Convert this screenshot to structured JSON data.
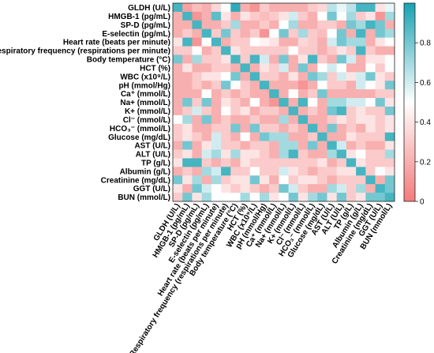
{
  "chart_data": {
    "type": "heatmap",
    "variables": [
      "GLDH (U/L)",
      "HMGB-1 (pg/mL)",
      "SP-D (pg/mL)",
      "E-selectin (pg/mL)",
      "Heart rate (beats per minute)",
      "Respiratory frequency (respirations per minute)",
      "Body temperature (°C)",
      "HCT (%)",
      "WBC (x10⁹/L)",
      "pH (mmol/Hg)",
      "Ca⁺ (mmol/L)",
      "Na+ (mmol/L)",
      "K+ (mmol/L)",
      "Cl⁻ (mmol/L)",
      "HCO₃⁻ (mmol/L)",
      "Glucose (mg/dL)",
      "AST (U/L)",
      "ALT (U/L)",
      "TP (g/L)",
      "Albumin (g/L)",
      "Creatinine (mg/dL)",
      "GGT (U/L)",
      "BUN (mmol/L)"
    ],
    "values": [
      [
        0.9,
        0.15,
        0.25,
        0.2,
        0.35,
        0.5,
        0.95,
        0.2,
        0.1,
        0.3,
        0.2,
        0.2,
        0.2,
        0.2,
        0.3,
        0.35,
        0.65,
        0.55,
        0.65,
        0.9,
        0.9,
        0.4,
        0.55
      ],
      [
        0.2,
        0.9,
        0.1,
        0.2,
        0.85,
        0.4,
        0.2,
        0.4,
        0.3,
        0.25,
        0.3,
        0.4,
        0.6,
        0.3,
        0.2,
        0.5,
        0.8,
        0.5,
        0.7,
        0.3,
        0.4,
        0.1,
        0.7
      ],
      [
        0.2,
        0.2,
        0.9,
        0.2,
        0.2,
        0.3,
        0.7,
        0.2,
        0.2,
        0.3,
        0.2,
        0.5,
        0.7,
        0.2,
        0.2,
        0.3,
        0.3,
        0.2,
        0.8,
        0.7,
        0.9,
        0.8,
        0.2
      ],
      [
        0.2,
        0.3,
        0.2,
        0.9,
        0.3,
        0.8,
        0.3,
        0.2,
        0.3,
        0.1,
        0.5,
        0.8,
        0.3,
        0.7,
        0.3,
        0.25,
        0.5,
        0.8,
        0.2,
        0.9,
        0.2,
        0.8,
        0.7
      ],
      [
        0.4,
        0.9,
        0.1,
        0.5,
        0.9,
        0.2,
        0.3,
        0.3,
        0.5,
        0.45,
        0.4,
        0.2,
        0.2,
        0.35,
        0.3,
        0.2,
        0.6,
        0.8,
        0.7,
        0.7,
        0.2,
        0.4,
        0.5
      ],
      [
        0.3,
        0.3,
        0.5,
        0.2,
        0.3,
        0.9,
        0.4,
        0.3,
        0.3,
        0.3,
        0.3,
        0.3,
        0.5,
        0.3,
        0.3,
        0.2,
        0.3,
        0.4,
        0.3,
        0.9,
        0.3,
        0.2,
        0.2
      ],
      [
        0.8,
        0.2,
        0.7,
        0.3,
        0.3,
        0.4,
        0.9,
        0.3,
        0.9,
        0.6,
        0.2,
        0.8,
        0.2,
        0.4,
        0.9,
        0.3,
        0.2,
        0.8,
        0.6,
        0.2,
        0.4,
        0.4,
        0.5
      ],
      [
        0.2,
        0.4,
        0.2,
        0.2,
        0.3,
        0.3,
        0.2,
        0.9,
        0.2,
        0.4,
        0.3,
        0.6,
        0.2,
        0.8,
        0.2,
        0.5,
        0.6,
        0.5,
        0.2,
        0.2,
        0.5,
        0.3,
        0.5
      ],
      [
        0.2,
        0.2,
        0.3,
        0.4,
        0.4,
        0.5,
        0.8,
        0.2,
        0.9,
        0.3,
        0.3,
        0.2,
        0.4,
        0.2,
        0.8,
        0.7,
        0.3,
        0.6,
        0.4,
        0.6,
        0.8,
        0.4,
        0.3
      ],
      [
        0.2,
        0.2,
        0.3,
        0.2,
        0.3,
        0.8,
        0.5,
        0.3,
        0.2,
        0.9,
        0.2,
        0.2,
        0.2,
        0.1,
        0.2,
        0.5,
        0.3,
        0.3,
        0.2,
        0.6,
        0.5,
        0.4,
        0.8
      ],
      [
        0.2,
        0.2,
        0.2,
        0.5,
        0.2,
        0.3,
        0.2,
        0.3,
        0.2,
        0.2,
        0.9,
        0.2,
        0.5,
        0.2,
        0.3,
        0.8,
        0.2,
        0.2,
        0.2,
        0.2,
        0.2,
        0.3,
        0.3
      ],
      [
        0.2,
        0.8,
        0.3,
        0.8,
        0.2,
        0.4,
        0.3,
        0.2,
        0.5,
        0.2,
        0.1,
        0.9,
        0.2,
        0.9,
        0.5,
        0.2,
        0.7,
        0.7,
        0.6,
        0.6,
        0.5,
        0.8,
        0.4
      ],
      [
        0.2,
        0.3,
        0.6,
        0.3,
        0.2,
        0.5,
        0.3,
        0.4,
        0.2,
        0.3,
        0.3,
        0.2,
        0.9,
        0.2,
        0.3,
        0.2,
        0.8,
        0.9,
        0.3,
        0.4,
        0.3,
        0.3,
        0.8
      ],
      [
        0.5,
        0.7,
        0.2,
        0.8,
        0.2,
        0.3,
        0.2,
        0.2,
        0.3,
        0.2,
        0.2,
        0.7,
        0.2,
        0.9,
        0.2,
        0.2,
        0.3,
        0.4,
        0.3,
        0.4,
        0.4,
        0.3,
        0.4
      ],
      [
        0.3,
        0.4,
        0.2,
        0.2,
        0.3,
        0.3,
        0.8,
        0.2,
        0.8,
        0.3,
        0.3,
        0.2,
        0.3,
        0.2,
        0.9,
        0.2,
        0.8,
        0.2,
        0.3,
        0.2,
        0.4,
        0.3,
        0.4
      ],
      [
        0.3,
        0.4,
        0.3,
        0.2,
        0.6,
        0.3,
        0.2,
        0.5,
        0.2,
        0.8,
        0.7,
        0.7,
        0.2,
        0.2,
        0.3,
        0.9,
        0.2,
        0.2,
        0.4,
        0.3,
        0.3,
        0.3,
        0.9
      ],
      [
        0.2,
        0.8,
        0.2,
        0.4,
        0.6,
        0.3,
        0.3,
        0.2,
        0.3,
        0.3,
        0.2,
        0.7,
        0.7,
        0.2,
        0.8,
        0.2,
        0.9,
        0.6,
        0.2,
        0.3,
        0.2,
        0.2,
        0.4
      ],
      [
        0.3,
        0.4,
        0.2,
        0.6,
        0.7,
        0.4,
        0.7,
        0.4,
        0.4,
        0.3,
        0.2,
        0.7,
        0.9,
        0.3,
        0.2,
        0.2,
        0.7,
        0.9,
        0.4,
        0.5,
        0.3,
        0.3,
        0.7
      ],
      [
        0.4,
        0.9,
        0.9,
        0.3,
        0.2,
        0.3,
        0.2,
        0.4,
        0.3,
        0.3,
        0.3,
        0.3,
        0.3,
        0.3,
        0.3,
        0.4,
        0.2,
        0.3,
        0.9,
        0.4,
        0.3,
        0.3,
        0.3
      ],
      [
        0.2,
        0.3,
        0.2,
        0.7,
        0.6,
        0.9,
        0.3,
        0.3,
        0.5,
        0.3,
        0.3,
        0.6,
        0.4,
        0.3,
        0.2,
        0.3,
        0.3,
        0.4,
        0.4,
        0.9,
        0.3,
        0.5,
        0.4
      ],
      [
        0.8,
        0.4,
        0.7,
        0.2,
        0.7,
        0.3,
        0.4,
        0.4,
        0.8,
        0.4,
        0.2,
        0.5,
        0.3,
        0.4,
        0.4,
        0.3,
        0.2,
        0.3,
        0.3,
        0.3,
        0.9,
        0.2,
        0.8
      ],
      [
        0.4,
        0.2,
        0.8,
        0.6,
        0.5,
        0.4,
        0.3,
        0.4,
        0.3,
        0.2,
        0.3,
        0.8,
        0.6,
        0.3,
        0.2,
        0.2,
        0.7,
        0.6,
        0.3,
        0.7,
        0.2,
        0.9,
        0.8
      ],
      [
        0.3,
        0.8,
        0.4,
        0.7,
        0.5,
        0.5,
        0.5,
        0.7,
        0.5,
        0.7,
        0.4,
        0.5,
        0.8,
        0.4,
        0.7,
        0.8,
        0.4,
        0.8,
        0.3,
        0.4,
        0.8,
        0.8,
        0.9
      ]
    ],
    "colorscale": {
      "min": 0,
      "max": 1,
      "low_color": "#f47a7a",
      "mid_color": "#ffffff",
      "high_color": "#17a2b2",
      "ticks": [
        "0",
        "0.2",
        "0.4",
        "0.6",
        "0.8"
      ]
    }
  }
}
